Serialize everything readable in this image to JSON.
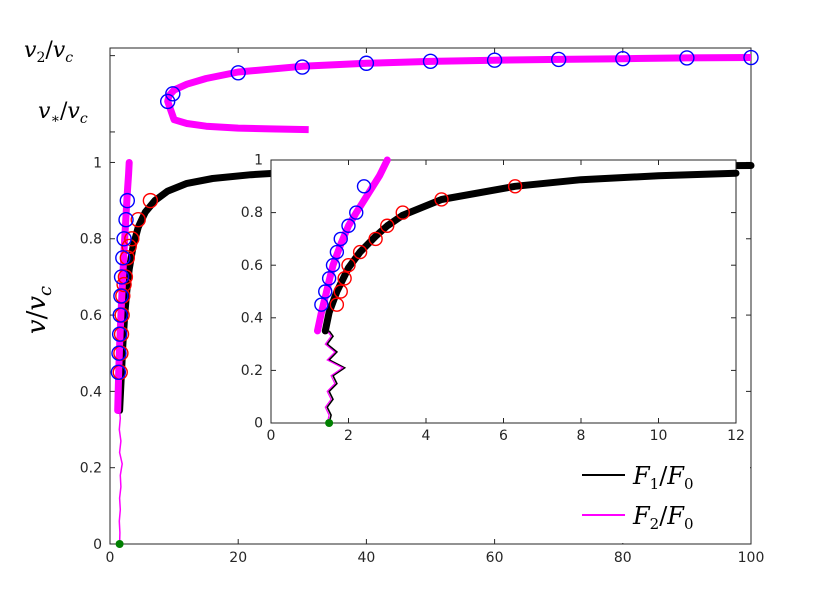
{
  "chart_data": [
    {
      "type": "line",
      "xlim": [
        0,
        100
      ],
      "ylim": [
        0,
        1.3
      ],
      "x_ticks": [
        "0",
        "20",
        "40",
        "60",
        "80",
        "100"
      ],
      "y_ticks": [
        "0",
        "0.2",
        "0.4",
        "0.6",
        "0.8",
        "1"
      ],
      "y_extra_ticks": [
        {
          "value": 1.08,
          "label": "v*/vc"
        },
        {
          "value": 1.28,
          "label": "v2/vc"
        }
      ],
      "ylabel": "v/vc",
      "legend_position": "bottom-right",
      "colors": {
        "F1": "#000000",
        "F2": "#ff00ff",
        "markers_blue": "#0000ff",
        "markers_red": "#ff0000",
        "start_point": "#008000"
      },
      "series": [
        {
          "name": "F1/F0",
          "x": [
            1.5,
            1.8,
            2.0,
            2.3,
            2.6,
            3.0,
            3.6,
            4.4,
            5.5,
            7.0,
            9.0,
            12,
            16,
            22,
            30,
            45,
            60,
            80,
            100
          ],
          "y": [
            0.35,
            0.45,
            0.52,
            0.6,
            0.66,
            0.72,
            0.78,
            0.83,
            0.87,
            0.9,
            0.925,
            0.945,
            0.958,
            0.968,
            0.976,
            0.983,
            0.987,
            0.99,
            0.992
          ]
        },
        {
          "name": "F2/F0",
          "lower_branch": {
            "x": [
              1.2,
              1.35,
              1.5,
              1.7,
              1.9,
              2.1,
              2.3,
              2.5,
              2.7,
              2.9,
              3.0
            ],
            "y": [
              0.35,
              0.45,
              0.52,
              0.6,
              0.67,
              0.74,
              0.8,
              0.86,
              0.92,
              0.97,
              1.0
            ]
          },
          "upper_branch": {
            "x": [
              31,
              25,
              20,
              15,
              12,
              10,
              9.0,
              9.2,
              10,
              12,
              15,
              20,
              30,
              40,
              50,
              60,
              70,
              80,
              90,
              100
            ],
            "y": [
              1.086,
              1.088,
              1.09,
              1.095,
              1.102,
              1.112,
              1.16,
              1.175,
              1.19,
              1.205,
              1.22,
              1.237,
              1.252,
              1.26,
              1.265,
              1.268,
              1.27,
              1.272,
              1.274,
              1.275
            ]
          }
        }
      ],
      "markers_blue": {
        "x": [
          1.3,
          1.4,
          1.5,
          1.6,
          1.7,
          1.8,
          2.0,
          2.2,
          2.5,
          2.7,
          9.0,
          9.8,
          20,
          30,
          40,
          50,
          60,
          70,
          80,
          90,
          100
        ],
        "y": [
          0.45,
          0.5,
          0.55,
          0.6,
          0.65,
          0.7,
          0.75,
          0.8,
          0.85,
          0.9,
          1.16,
          1.18,
          1.235,
          1.25,
          1.26,
          1.265,
          1.268,
          1.27,
          1.272,
          1.274,
          1.275
        ]
      },
      "markers_red": {
        "x": [
          1.6,
          1.7,
          1.8,
          1.9,
          2.0,
          2.2,
          2.4,
          2.7,
          3.0,
          3.4,
          4.4,
          6.3
        ],
        "y": [
          0.45,
          0.5,
          0.55,
          0.6,
          0.65,
          0.68,
          0.7,
          0.75,
          0.78,
          0.8,
          0.85,
          0.9
        ]
      },
      "start_point": {
        "x": 1.5,
        "y": 0.0
      }
    },
    {
      "type": "line",
      "inset": true,
      "xlim": [
        0,
        12
      ],
      "ylim": [
        0,
        1.0
      ],
      "x_ticks": [
        "0",
        "2",
        "4",
        "6",
        "8",
        "10",
        "12"
      ],
      "y_ticks": [
        "0",
        "0.2",
        "0.4",
        "0.6",
        "0.8",
        "1"
      ],
      "series": [
        {
          "name": "F1/F0",
          "x": [
            1.4,
            1.5,
            1.7,
            2.0,
            2.3,
            2.7,
            3.0,
            3.4,
            4.4,
            6.3,
            8.0,
            10,
            12
          ],
          "y": [
            0.35,
            0.42,
            0.5,
            0.59,
            0.65,
            0.71,
            0.75,
            0.79,
            0.85,
            0.9,
            0.925,
            0.94,
            0.95
          ]
        },
        {
          "name": "F2/F0",
          "x": [
            1.2,
            1.3,
            1.4,
            1.5,
            1.6,
            1.8,
            2.0,
            2.2,
            2.5,
            2.8,
            3.0
          ],
          "y": [
            0.35,
            0.42,
            0.48,
            0.54,
            0.6,
            0.68,
            0.75,
            0.8,
            0.87,
            0.94,
            1.0
          ]
        }
      ],
      "noise_region": {
        "x": [
          1.5,
          1.55,
          1.45,
          1.6,
          1.5,
          1.7,
          1.6,
          1.9,
          1.5,
          1.7,
          1.45,
          1.6,
          1.5
        ],
        "y": [
          0.0,
          0.03,
          0.06,
          0.09,
          0.12,
          0.15,
          0.18,
          0.21,
          0.24,
          0.27,
          0.3,
          0.33,
          0.35
        ]
      },
      "markers_blue": {
        "x": [
          1.3,
          1.4,
          1.5,
          1.6,
          1.7,
          1.8,
          2.0,
          2.2,
          2.4
        ],
        "y": [
          0.45,
          0.5,
          0.55,
          0.6,
          0.65,
          0.7,
          0.75,
          0.8,
          0.9
        ]
      },
      "markers_red": {
        "x": [
          1.7,
          1.8,
          1.9,
          2.0,
          2.3,
          2.7,
          3.0,
          3.4,
          4.4,
          6.3
        ],
        "y": [
          0.45,
          0.5,
          0.55,
          0.6,
          0.65,
          0.7,
          0.75,
          0.8,
          0.85,
          0.9
        ]
      },
      "start_point": {
        "x": 1.5,
        "y": 0.0
      }
    }
  ]
}
